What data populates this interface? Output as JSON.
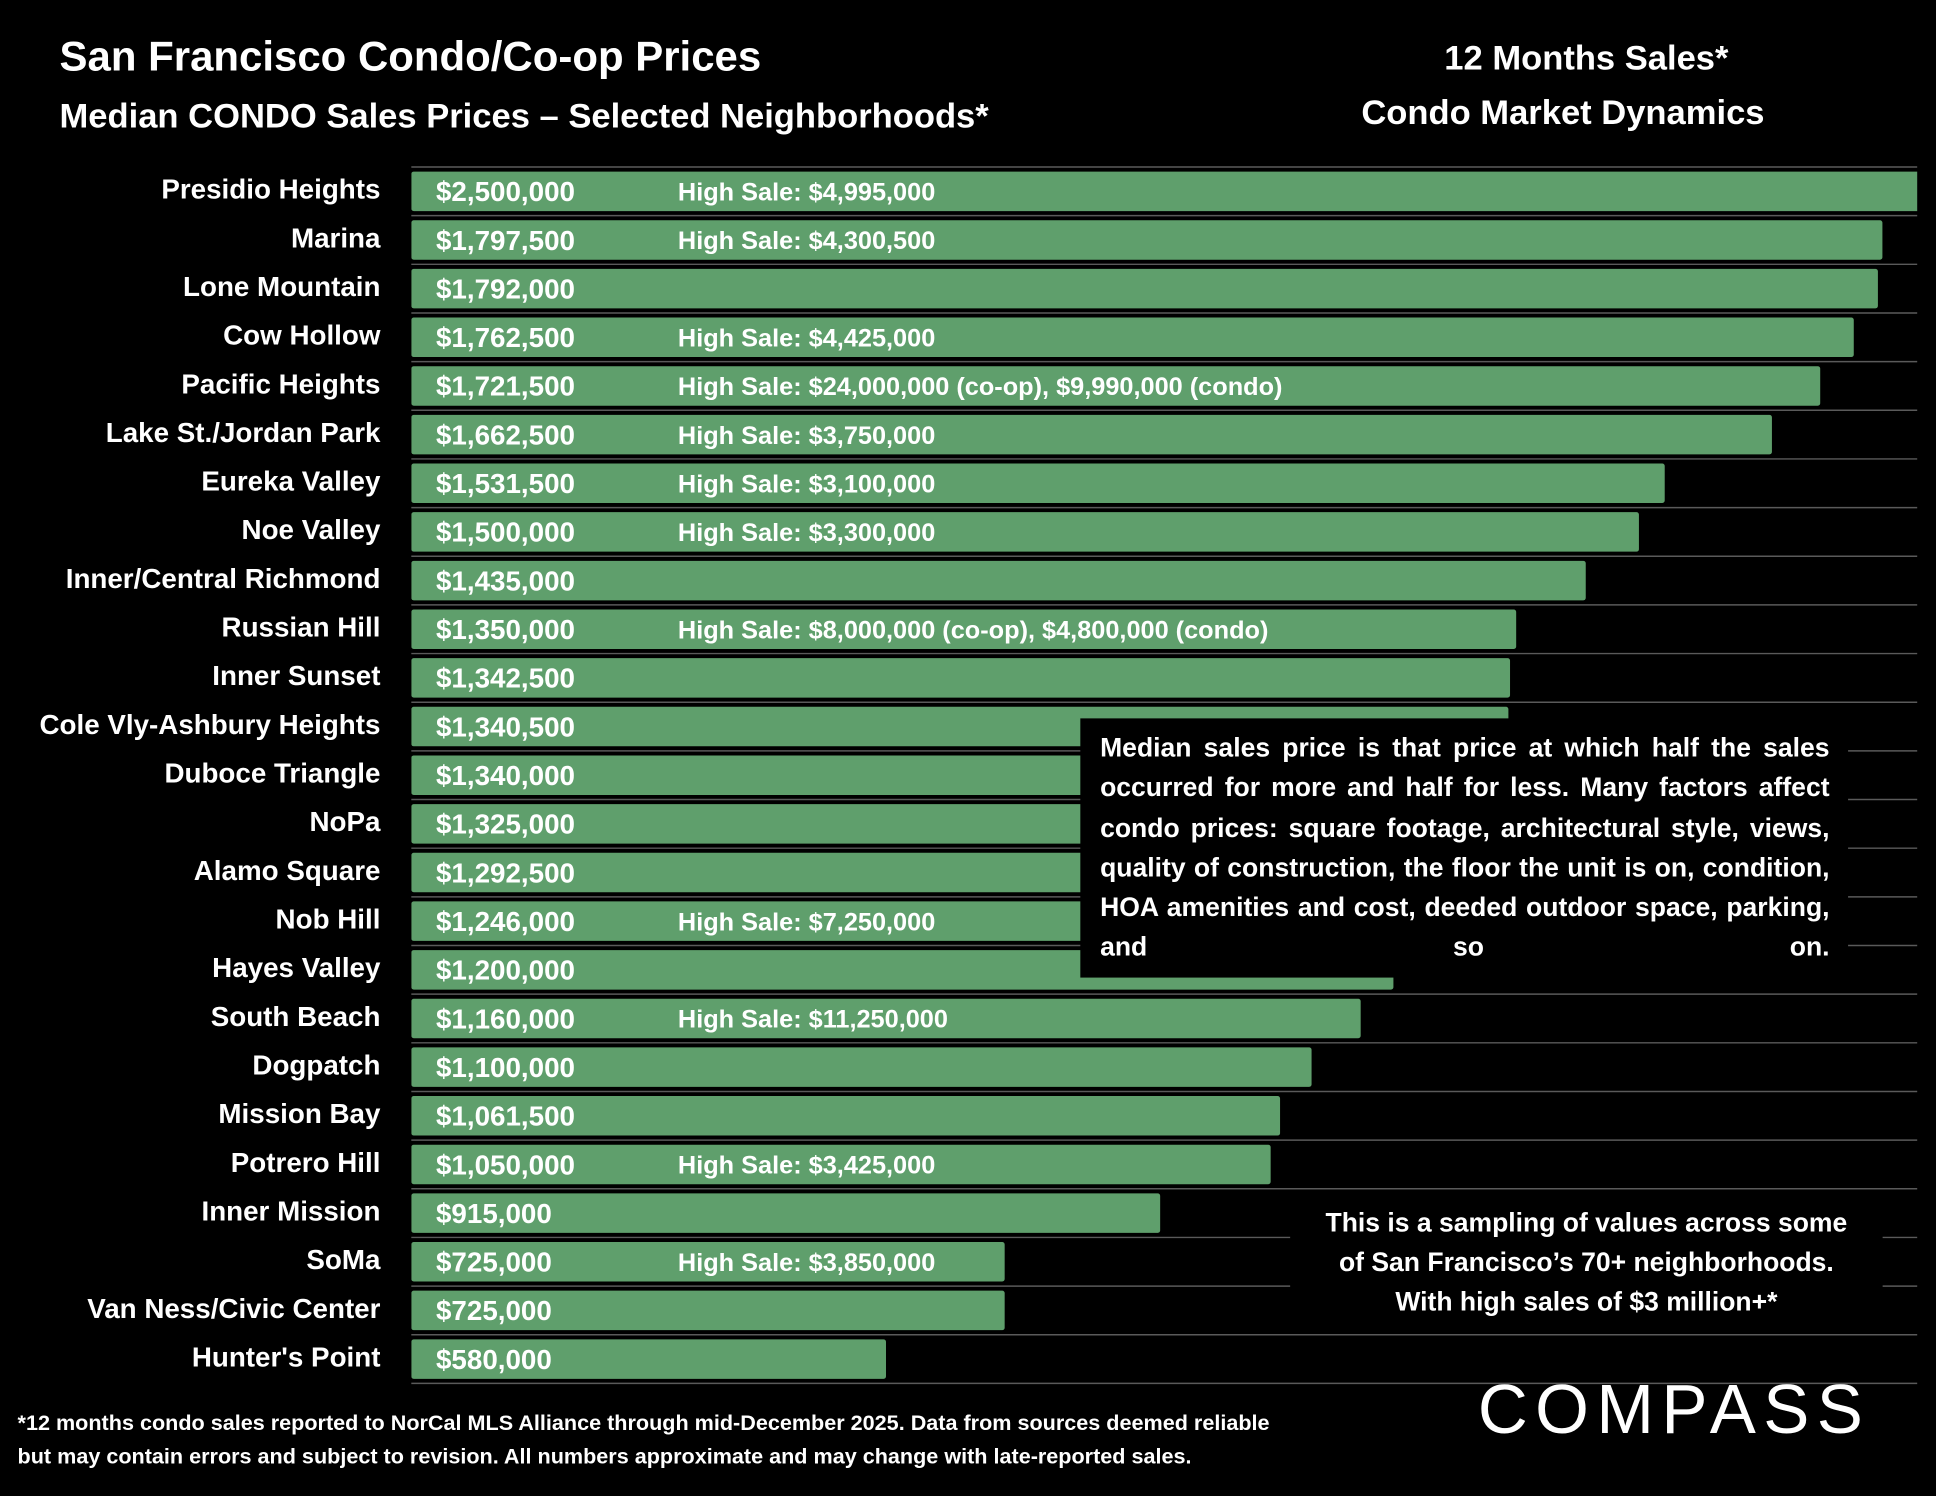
{
  "chart_data": {
    "type": "bar",
    "orientation": "horizontal",
    "title": "San Francisco Condo/Co-op Prices",
    "subtitle": "Median CONDO Sales Prices – Selected Neighborhoods*",
    "side_title": [
      "12 Months Sales*",
      "Condo Market Dynamics"
    ],
    "categories": [
      "Presidio Heights",
      "Marina",
      "Lone Mountain",
      "Cow Hollow",
      "Pacific Heights",
      "Lake St./Jordan Park",
      "Eureka Valley",
      "Noe Valley",
      "Inner/Central Richmond",
      "Russian Hill",
      "Inner Sunset",
      "Cole Vly-Ashbury Heights",
      "Duboce Triangle",
      "NoPa",
      "Alamo Square",
      "Nob Hill",
      "Hayes Valley",
      "South Beach",
      "Dogpatch",
      "Mission Bay",
      "Potrero Hill",
      "Inner Mission",
      "SoMa",
      "Van Ness/Civic Center",
      "Hunter's Point"
    ],
    "values": [
      2500000,
      1797500,
      1792000,
      1762500,
      1721500,
      1662500,
      1531500,
      1500000,
      1435000,
      1350000,
      1342500,
      1340500,
      1340000,
      1325000,
      1292500,
      1246000,
      1200000,
      1160000,
      1100000,
      1061500,
      1050000,
      915000,
      725000,
      725000,
      580000
    ],
    "value_labels": [
      "$2,500,000",
      "$1,797,500",
      "$1,792,000",
      "$1,762,500",
      "$1,721,500",
      "$1,662,500",
      "$1,531,500",
      "$1,500,000",
      "$1,435,000",
      "$1,350,000",
      "$1,342,500",
      "$1,340,500",
      "$1,340,000",
      "$1,325,000",
      "$1,292,500",
      "$1,246,000",
      "$1,200,000",
      "$1,160,000",
      "$1,100,000",
      "$1,061,500",
      "$1,050,000",
      "$915,000",
      "$725,000",
      "$725,000",
      "$580,000"
    ],
    "high_sale_labels": [
      "High Sale:  $4,995,000",
      "High Sale:  $4,300,500",
      null,
      "High Sale:  $4,425,000",
      "High Sale:  $24,000,000 (co-op), $9,990,000 (condo)",
      "High Sale:  $3,750,000",
      "High Sale:  $3,100,000",
      "High Sale:  $3,300,000",
      null,
      "High Sale:  $8,000,000 (co-op), $4,800,000 (condo)",
      null,
      null,
      null,
      null,
      null,
      "High Sale:  $7,250,000",
      null,
      "High Sale:  $11,250,000",
      null,
      null,
      "High Sale:  $3,425,000",
      null,
      "High Sale:  $3,850,000",
      null,
      null
    ],
    "color": "#5f9f6c",
    "xlim": [
      0,
      1840000
    ],
    "note": "Median sales price is that price at which half the sales occurred for more and half for less. Many factors affect condo prices: square footage, architectural style, views, quality of construction, the floor the unit is on, condition, HOA amenities and cost, deeded outdoor space, parking, and so on.",
    "sampling_note": [
      "This is a sampling of values across some",
      "of San Francisco’s 70+ neighborhoods.",
      "With high sales of $3 million+*"
    ],
    "footnote": [
      "*12 months condo sales reported to NorCal MLS Alliance through mid-December 2025. Data from sources deemed reliable",
      "but may contain errors and subject to revision. All numbers approximate and may change with late-reported sales."
    ]
  },
  "logo": "COMPASS"
}
